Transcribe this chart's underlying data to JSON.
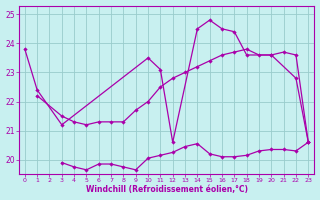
{
  "xlabel": "Windchill (Refroidissement éolien,°C)",
  "background_color": "#c8f0f0",
  "line_color": "#aa00aa",
  "grid_color": "#99cccc",
  "ylim": [
    19.5,
    25.3
  ],
  "xlim": [
    -0.5,
    23.5
  ],
  "yticks": [
    20,
    21,
    22,
    23,
    24,
    25
  ],
  "xticks": [
    0,
    1,
    2,
    3,
    4,
    5,
    6,
    7,
    8,
    9,
    10,
    11,
    12,
    13,
    14,
    15,
    16,
    17,
    18,
    19,
    20,
    21,
    22,
    23
  ],
  "line1_x": [
    0,
    1,
    3,
    10,
    11,
    12,
    14,
    15,
    16,
    17,
    18,
    20,
    22,
    23
  ],
  "line1_y": [
    23.8,
    22.4,
    21.2,
    23.5,
    23.1,
    20.6,
    24.5,
    24.8,
    24.5,
    24.4,
    23.6,
    23.6,
    22.8,
    20.6
  ],
  "line2_x": [
    1,
    3,
    4,
    5,
    6,
    7,
    8,
    9,
    10,
    11,
    12,
    13,
    14,
    15,
    16,
    17,
    18,
    19,
    20,
    21,
    22,
    23
  ],
  "line2_y": [
    22.2,
    21.5,
    21.3,
    21.2,
    21.3,
    21.3,
    21.3,
    21.7,
    22.0,
    22.5,
    22.8,
    23.0,
    23.2,
    23.4,
    23.6,
    23.7,
    23.8,
    23.6,
    23.6,
    23.7,
    23.6,
    20.6
  ],
  "line3_x": [
    3,
    4,
    5,
    6,
    7,
    8,
    9,
    10,
    11,
    12,
    13,
    14,
    15,
    16,
    17,
    18,
    19,
    20,
    21,
    22,
    23
  ],
  "line3_y": [
    19.9,
    19.75,
    19.65,
    19.85,
    19.85,
    19.75,
    19.65,
    20.05,
    20.15,
    20.25,
    20.45,
    20.55,
    20.2,
    20.1,
    20.1,
    20.15,
    20.3,
    20.35,
    20.35,
    20.3,
    20.6
  ]
}
